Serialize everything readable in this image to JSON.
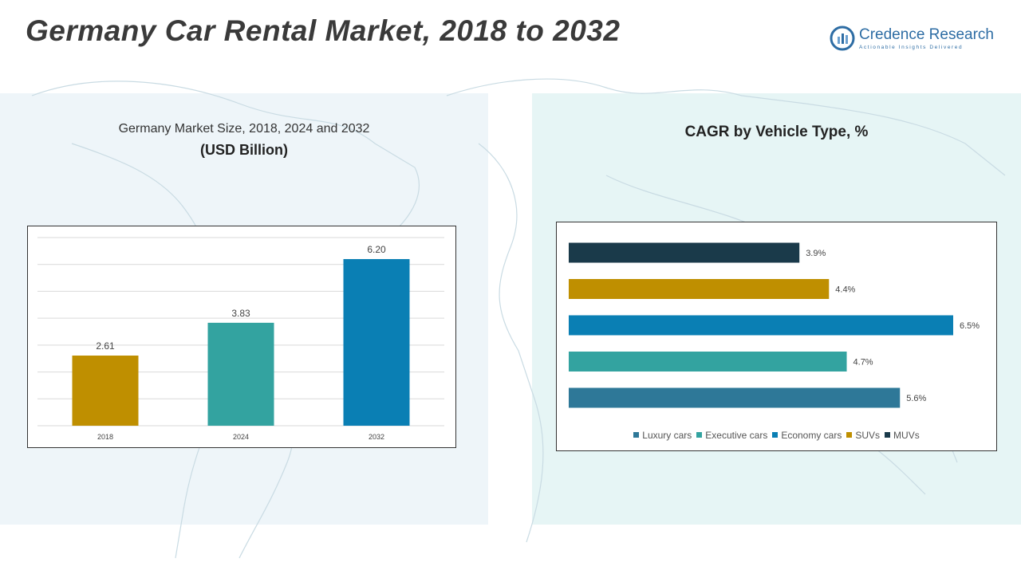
{
  "header": {
    "title": "Germany Car Rental Market, 2018 to 2032"
  },
  "logo": {
    "name": "Credence Research",
    "tagline": "Actionable Insights Delivered",
    "icon": "credence-logo-icon"
  },
  "colors": {
    "gold": "#bf8f00",
    "teal": "#33a3a0",
    "blue": "#0a7fb4",
    "steel": "#2e7898",
    "navy": "#1a3a4a"
  },
  "left_panel": {
    "subtitle": "Germany Market Size, 2018, 2024 and 2032",
    "unit": "(USD Billion)"
  },
  "right_panel": {
    "title": "CAGR by Vehicle Type, %"
  },
  "chart_data": [
    {
      "type": "bar",
      "title": "Germany Market Size, 2018, 2024 and 2032",
      "ylabel": "(USD Billion)",
      "categories": [
        "2018",
        "2024",
        "2032"
      ],
      "values": [
        2.61,
        3.83,
        6.2
      ],
      "labels": [
        "2.61",
        "3.83",
        "6.20"
      ],
      "colors": [
        "#bf8f00",
        "#33a3a0",
        "#0a7fb4"
      ],
      "ylim": [
        0,
        7
      ],
      "grid": true
    },
    {
      "type": "bar",
      "orientation": "horizontal",
      "title": "CAGR by Vehicle Type, %",
      "categories": [
        "MUVs",
        "SUVs",
        "Economy cars",
        "Executive cars",
        "Luxury cars"
      ],
      "values": [
        3.9,
        4.4,
        6.5,
        4.7,
        5.6
      ],
      "labels": [
        "3.9%",
        "4.4%",
        "6.5%",
        "4.7%",
        "5.6%"
      ],
      "colors": [
        "#1a3a4a",
        "#bf8f00",
        "#0a7fb4",
        "#33a3a0",
        "#2e7898"
      ],
      "xlim": [
        0,
        6.5
      ],
      "grid": false,
      "legend": {
        "position": "bottom",
        "entries": [
          {
            "name": "Luxury cars",
            "color": "#2e7898"
          },
          {
            "name": "Executive cars",
            "color": "#33a3a0"
          },
          {
            "name": "Economy cars",
            "color": "#0a7fb4"
          },
          {
            "name": "SUVs",
            "color": "#bf8f00"
          },
          {
            "name": "MUVs",
            "color": "#1a3a4a"
          }
        ]
      }
    }
  ]
}
